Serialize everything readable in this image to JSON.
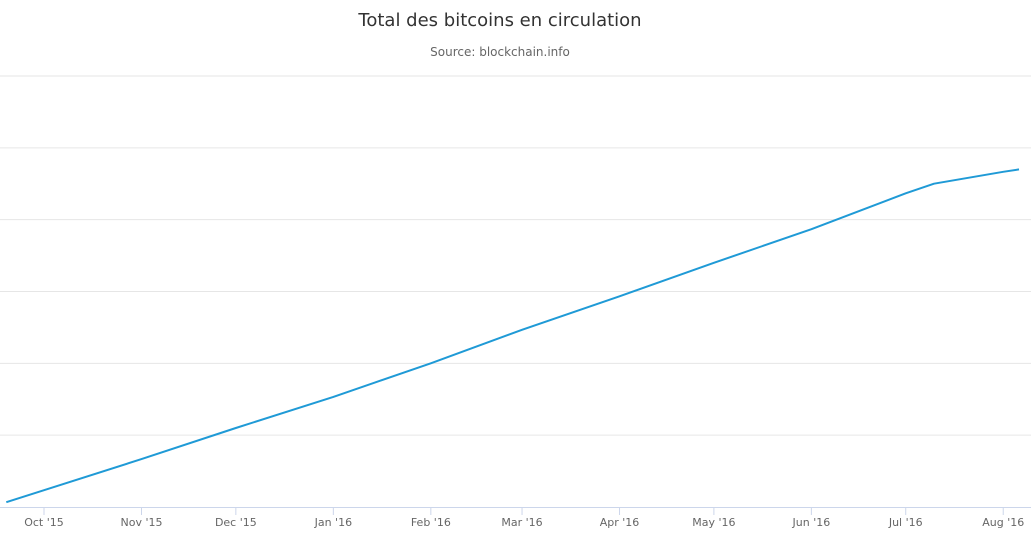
{
  "chart_data": {
    "type": "line",
    "title": "Total des bitcoins en circulation",
    "subtitle": "Source: blockchain.info",
    "xlabel": "",
    "ylabel": "",
    "grid": true,
    "y_gridlines": 6,
    "x_ticks": [
      "Oct '15",
      "Nov '15",
      "Dec '15",
      "Jan '16",
      "Feb '16",
      "Mar '16",
      "Apr '16",
      "May '16",
      "Jun '16",
      "Jul '16",
      "Aug '16"
    ],
    "series": [
      {
        "color": "#1f9ad6",
        "points": [
          {
            "x": "2015-09-19",
            "y": 14.42
          },
          {
            "x": "2015-10-01",
            "y": 14.47
          },
          {
            "x": "2015-11-01",
            "y": 14.6
          },
          {
            "x": "2015-12-01",
            "y": 14.73
          },
          {
            "x": "2016-01-01",
            "y": 14.86
          },
          {
            "x": "2016-02-01",
            "y": 15.0
          },
          {
            "x": "2016-03-01",
            "y": 15.14
          },
          {
            "x": "2016-04-01",
            "y": 15.28
          },
          {
            "x": "2016-05-01",
            "y": 15.42
          },
          {
            "x": "2016-06-01",
            "y": 15.56
          },
          {
            "x": "2016-07-01",
            "y": 15.71
          },
          {
            "x": "2016-07-10",
            "y": 15.75
          },
          {
            "x": "2016-08-01",
            "y": 15.8
          },
          {
            "x": "2016-08-06",
            "y": 15.81
          }
        ]
      }
    ]
  }
}
